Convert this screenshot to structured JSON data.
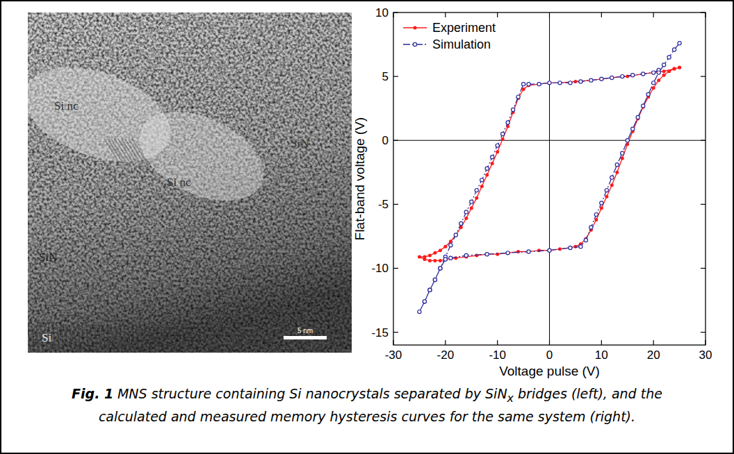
{
  "image": {
    "labels": [
      "Si nc",
      "Si nc",
      "SiN",
      "SiN",
      "Si"
    ],
    "scale_bar": "5 nm"
  },
  "chart_data": {
    "type": "line",
    "x_label": "Voltage pulse (V)",
    "y_label": "Flat-band voltage (V)",
    "xlim": [
      -30,
      30
    ],
    "xticks": [
      -30,
      -20,
      -10,
      0,
      10,
      20,
      30
    ],
    "ylim": [
      -16,
      10
    ],
    "yticks": [
      -15,
      -10,
      -5,
      0,
      5,
      10
    ],
    "grid": false,
    "legend": "upper left",
    "series": [
      {
        "name": "Experiment",
        "color": "#ff1a1a",
        "marker": "dot",
        "line_style": "solid",
        "x": [
          25,
          24,
          22,
          20,
          18,
          15,
          12,
          10,
          8,
          5,
          2,
          0,
          -2,
          -4,
          -5,
          -6,
          -7,
          -8,
          -9,
          -10,
          -11,
          -12,
          -13,
          -14,
          -15,
          -16,
          -17,
          -18,
          -19,
          -20,
          -21,
          -22,
          -23,
          -24,
          -25,
          -24,
          -23,
          -22,
          -21,
          -20,
          -18,
          -16,
          -14,
          -12,
          -10,
          -8,
          -6,
          -4,
          -2,
          0,
          2,
          4,
          5,
          6,
          7,
          8,
          9,
          10,
          11,
          12,
          13,
          14,
          15,
          16,
          17,
          18,
          19,
          20,
          21,
          22,
          23,
          24,
          25
        ],
        "values": [
          5.7,
          5.6,
          5.4,
          5.3,
          5.2,
          5.0,
          4.9,
          4.8,
          4.7,
          4.6,
          4.5,
          4.5,
          4.4,
          4.3,
          4.0,
          3.3,
          2.2,
          1.1,
          0.1,
          -0.9,
          -1.8,
          -2.7,
          -3.6,
          -4.5,
          -5.3,
          -6.1,
          -6.8,
          -7.4,
          -7.9,
          -8.3,
          -8.6,
          -8.8,
          -9.0,
          -9.1,
          -9.1,
          -9.3,
          -9.4,
          -9.4,
          -9.4,
          -9.3,
          -9.2,
          -9.1,
          -9.0,
          -8.9,
          -8.9,
          -8.8,
          -8.7,
          -8.7,
          -8.6,
          -8.6,
          -8.5,
          -8.4,
          -8.3,
          -8.1,
          -7.7,
          -7.0,
          -6.2,
          -5.3,
          -4.4,
          -3.5,
          -2.5,
          -1.4,
          -0.3,
          0.7,
          1.7,
          2.6,
          3.4,
          4.1,
          4.7,
          5.1,
          5.4,
          5.6,
          5.7
        ]
      },
      {
        "name": "Simulation",
        "color": "#2b2b9c",
        "marker": "circle",
        "line_style": "dashdot",
        "x": [
          21,
          20,
          18,
          16,
          14,
          12,
          10,
          8,
          6,
          4,
          2,
          0,
          -2,
          -4,
          -5,
          -6,
          -7,
          -8,
          -9,
          -10,
          -11,
          -12,
          -13,
          -14,
          -15,
          -16,
          -17,
          -18,
          -19,
          -20,
          -21,
          -22,
          -23,
          -24,
          -25,
          -24,
          -23,
          -22,
          -21,
          -20,
          -19,
          -16,
          -12,
          -8,
          -4,
          0,
          4,
          6,
          7,
          8,
          9,
          10,
          11,
          12,
          13,
          14,
          15,
          16,
          17,
          18,
          19,
          20,
          21,
          22,
          23,
          24,
          25
        ],
        "values": [
          5.5,
          5.3,
          5.2,
          5.1,
          5.0,
          4.9,
          4.8,
          4.7,
          4.6,
          4.5,
          4.5,
          4.5,
          4.4,
          4.4,
          4.4,
          3.4,
          2.4,
          1.4,
          0.5,
          -0.4,
          -1.3,
          -2.2,
          -3.1,
          -3.9,
          -4.8,
          -5.6,
          -6.5,
          -7.4,
          -8.2,
          -9.1,
          -10.0,
          -10.9,
          -11.7,
          -12.6,
          -13.4,
          -12.6,
          -11.7,
          -10.9,
          -10.0,
          -9.3,
          -9.2,
          -9.0,
          -8.9,
          -8.8,
          -8.7,
          -8.6,
          -8.4,
          -8.3,
          -7.8,
          -6.8,
          -5.8,
          -4.9,
          -3.9,
          -2.9,
          -1.9,
          -1.0,
          0,
          0.9,
          1.8,
          2.7,
          3.6,
          4.5,
          5.3,
          5.9,
          6.5,
          7.1,
          7.6
        ]
      }
    ]
  },
  "caption": {
    "label": "Fig. 1",
    "before": "MNS structure containing Si nanocrystals separated by SiN",
    "subscript": "x",
    "after": " bridges (left), and the calculated and measured memory hysteresis curves for the same system (right)."
  }
}
